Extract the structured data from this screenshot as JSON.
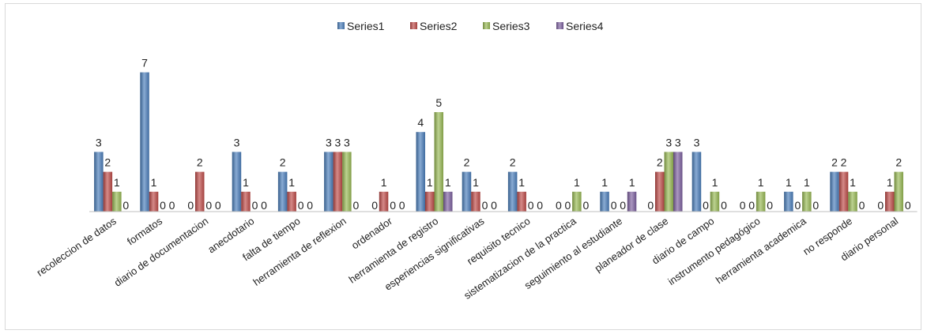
{
  "chart_data": {
    "type": "bar",
    "title": "",
    "xlabel": "",
    "ylabel": "",
    "ylim": [
      0,
      7
    ],
    "grid": false,
    "legend_position": "top-center",
    "categories": [
      "recoleccion de datos",
      "formatos",
      "diario  de documentacion",
      "anecdotario",
      "falta de tiempo",
      "herramienta de reflexion",
      "ordenador",
      "herramienta de registro",
      "esperiencias significativas",
      "requisito tecnico",
      "sistematizacion de la practica",
      "seguimiento al estudiante",
      "planeador de clase",
      "diario de campo",
      "instrumento pedagógico",
      "herramienta academica",
      "no responde",
      "diario personal"
    ],
    "series": [
      {
        "name": "Series1",
        "color": "#4a7ebb",
        "values": [
          3,
          7,
          0,
          3,
          2,
          3,
          0,
          4,
          2,
          2,
          0,
          1,
          0,
          3,
          0,
          1,
          2,
          0
        ]
      },
      {
        "name": "Series2",
        "color": "#be4b48",
        "values": [
          2,
          1,
          2,
          1,
          1,
          3,
          1,
          1,
          1,
          1,
          0,
          0,
          2,
          0,
          0,
          0,
          2,
          1
        ]
      },
      {
        "name": "Series3",
        "color": "#98b954",
        "values": [
          1,
          0,
          0,
          0,
          0,
          3,
          0,
          5,
          0,
          0,
          1,
          0,
          3,
          1,
          1,
          1,
          1,
          2
        ]
      },
      {
        "name": "Series4",
        "color": "#7d60a0",
        "values": [
          0,
          0,
          0,
          0,
          0,
          0,
          0,
          1,
          0,
          0,
          0,
          1,
          3,
          0,
          0,
          0,
          0,
          0
        ]
      }
    ]
  }
}
